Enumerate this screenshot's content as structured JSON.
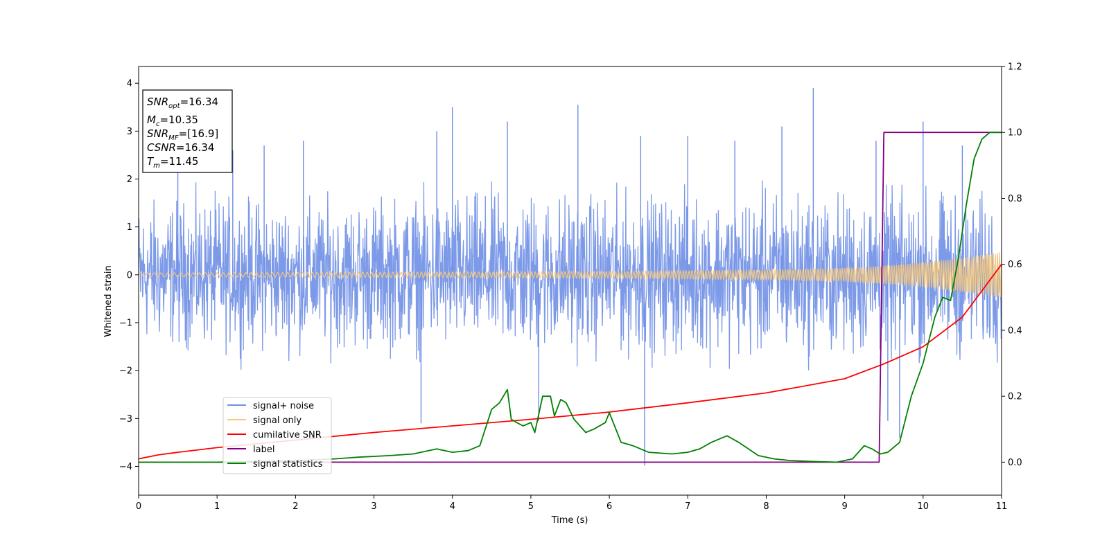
{
  "chart_data": {
    "type": "line",
    "xlabel": "Time (s)",
    "ylabel": "Whitened strain",
    "xlim": [
      0,
      11
    ],
    "ylim": [
      -4.6,
      4.35
    ],
    "y2lim": [
      -0.1,
      1.2
    ],
    "x_ticks": [
      "0",
      "1",
      "2",
      "3",
      "4",
      "5",
      "6",
      "7",
      "8",
      "9",
      "10",
      "11"
    ],
    "y_ticks": [
      "4",
      "3",
      "2",
      "1",
      "0",
      "−1",
      "−2",
      "−3",
      "−4"
    ],
    "y_tick_values": [
      4,
      3,
      2,
      1,
      0,
      -1,
      -2,
      -3,
      -4
    ],
    "y2_ticks": [
      "1.2",
      "1.0",
      "0.8",
      "0.6",
      "0.4",
      "0.2",
      "0.0"
    ],
    "y2_tick_values": [
      1.2,
      1.0,
      0.8,
      0.6,
      0.4,
      0.2,
      0.0
    ],
    "legend_placement": "lower-left",
    "colors": {
      "signal_noise": "#6f8fe6",
      "signal_only": "#f5c77a",
      "cumulative": "#ff0000",
      "label": "#800080",
      "statistics": "#008000"
    },
    "stats_box": {
      "snr_opt_label": "SNR",
      "snr_opt_sub": "opt",
      "snr_opt_value": "=16.34",
      "mc_label": "M",
      "mc_sub": "c",
      "mc_value": "=10.35",
      "snr_mf_label": "SNR",
      "snr_mf_sub": "MF",
      "snr_mf_value": "=[16.9]",
      "csnr_label": "CSNR",
      "csnr_value": "=16.34",
      "tm_label": "T",
      "tm_sub": "m",
      "tm_value": "=11.45"
    },
    "series": [
      {
        "name": "signal+ noise",
        "axis": "left",
        "style": "noise-band",
        "envelope_x": [
          0,
          1,
          2,
          3,
          4,
          5,
          6,
          7,
          8,
          9,
          10,
          11
        ],
        "envelope_hi": [
          2.2,
          2.3,
          2.2,
          2.3,
          2.4,
          2.5,
          2.4,
          2.4,
          2.5,
          2.4,
          2.5,
          2.3
        ],
        "envelope_lo": [
          -2.1,
          -2.2,
          -2.2,
          -2.3,
          -2.3,
          -2.4,
          -2.4,
          -2.4,
          -2.5,
          -2.5,
          -2.5,
          -2.4
        ],
        "spikes_x": [
          0.5,
          1.2,
          1.6,
          2.1,
          3.8,
          4.0,
          4.7,
          5.6,
          6.4,
          7.0,
          7.6,
          8.2,
          8.6,
          9.4,
          10.0,
          10.5,
          6.45,
          5.1,
          9.55,
          9.7,
          3.6
        ],
        "spikes_y": [
          2.7,
          2.6,
          2.7,
          2.8,
          3.0,
          3.5,
          3.2,
          3.55,
          2.9,
          2.9,
          2.8,
          3.1,
          3.9,
          2.8,
          3.2,
          2.7,
          -3.98,
          -3.05,
          -3.05,
          -3.4,
          -3.1
        ]
      },
      {
        "name": "signal only",
        "axis": "left",
        "style": "chirp",
        "x": [
          0,
          2,
          4,
          6,
          8,
          9,
          9.5,
          10,
          10.5,
          11
        ],
        "amplitude": [
          0.04,
          0.05,
          0.06,
          0.07,
          0.1,
          0.14,
          0.19,
          0.26,
          0.36,
          0.48
        ]
      },
      {
        "name": "cumilative SNR",
        "axis": "right",
        "x": [
          0,
          0.25,
          0.5,
          1,
          2,
          3,
          4,
          5,
          6,
          7,
          8,
          9,
          9.5,
          10,
          10.5,
          11
        ],
        "values": [
          0.01,
          0.022,
          0.03,
          0.044,
          0.067,
          0.09,
          0.11,
          0.13,
          0.152,
          0.18,
          0.21,
          0.253,
          0.298,
          0.35,
          0.44,
          0.6
        ]
      },
      {
        "name": "label",
        "axis": "right",
        "x": [
          0,
          9.44,
          9.5,
          11
        ],
        "values": [
          0.0,
          0.0,
          1.0,
          1.0
        ]
      },
      {
        "name": "signal statistics",
        "axis": "right",
        "x": [
          0,
          1,
          2,
          2.5,
          2.8,
          3.2,
          3.5,
          3.8,
          4.0,
          4.2,
          4.35,
          4.5,
          4.6,
          4.7,
          4.75,
          4.82,
          4.9,
          5.0,
          5.05,
          5.15,
          5.25,
          5.3,
          5.38,
          5.45,
          5.55,
          5.7,
          5.8,
          5.95,
          6.0,
          6.15,
          6.3,
          6.5,
          6.8,
          7.0,
          7.15,
          7.3,
          7.5,
          7.65,
          7.9,
          8.1,
          8.3,
          8.6,
          8.9,
          9.1,
          9.25,
          9.35,
          9.45,
          9.55,
          9.7,
          9.85,
          10.0,
          10.15,
          10.25,
          10.35,
          10.45,
          10.55,
          10.65,
          10.75,
          10.85,
          11
        ],
        "values": [
          0.0,
          0.0,
          0.005,
          0.01,
          0.015,
          0.02,
          0.025,
          0.04,
          0.03,
          0.035,
          0.05,
          0.16,
          0.18,
          0.22,
          0.13,
          0.12,
          0.11,
          0.12,
          0.09,
          0.2,
          0.2,
          0.14,
          0.19,
          0.18,
          0.13,
          0.09,
          0.1,
          0.12,
          0.15,
          0.06,
          0.05,
          0.03,
          0.025,
          0.03,
          0.04,
          0.06,
          0.08,
          0.06,
          0.02,
          0.01,
          0.005,
          0.002,
          0.0,
          0.01,
          0.05,
          0.04,
          0.025,
          0.03,
          0.06,
          0.2,
          0.3,
          0.44,
          0.5,
          0.49,
          0.62,
          0.78,
          0.92,
          0.98,
          1.0,
          1.0
        ]
      }
    ]
  }
}
